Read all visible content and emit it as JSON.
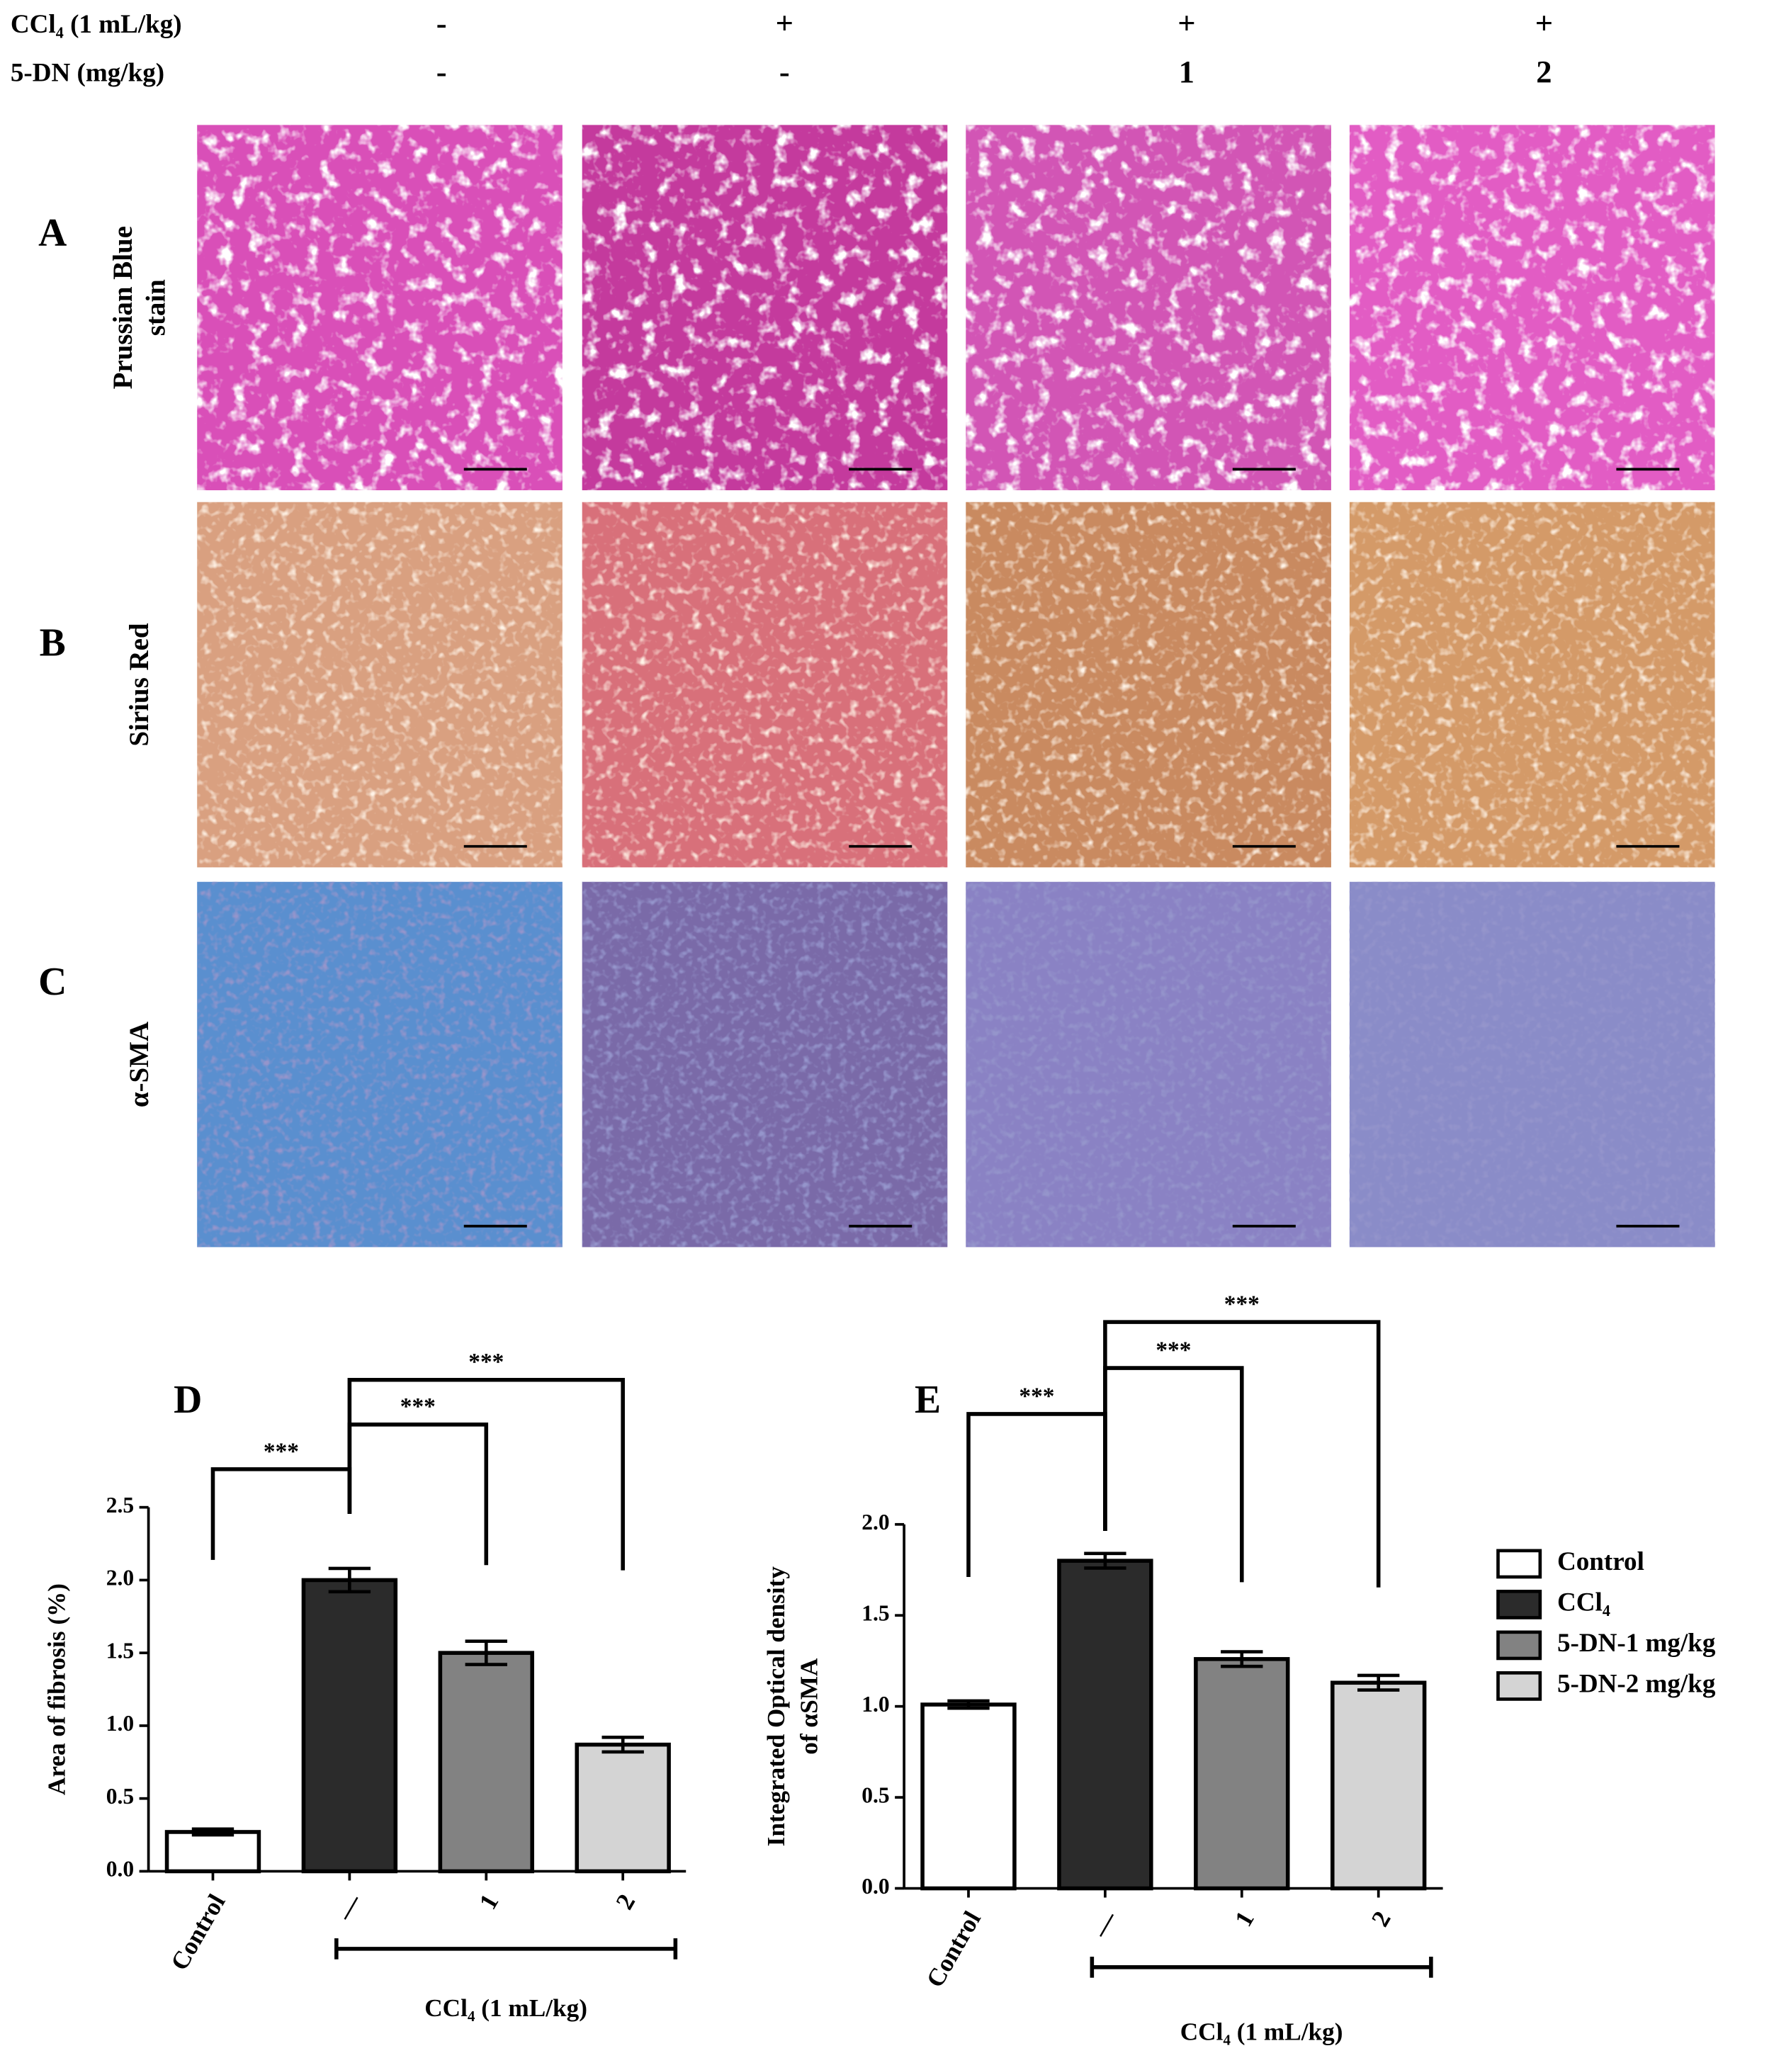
{
  "header": {
    "rows": [
      {
        "label": "CCl₄ (1 mL/kg)",
        "values": [
          "-",
          "+",
          "+",
          "+"
        ]
      },
      {
        "label": "5-DN (mg/kg)",
        "values": [
          "-",
          "-",
          "1",
          "2"
        ]
      }
    ]
  },
  "panels": [
    {
      "letter": "A",
      "label": [
        "Prussian Blue",
        "stain"
      ]
    },
    {
      "letter": "B",
      "label": [
        "Sirius Red"
      ]
    },
    {
      "letter": "C",
      "label": [
        "α-SMA"
      ]
    }
  ],
  "chart_data": [
    {
      "type": "bar",
      "panel": "D",
      "categories": [
        "Control",
        "—",
        "1",
        "2"
      ],
      "values": [
        0.27,
        2.0,
        1.5,
        0.87
      ],
      "errors": [
        0.02,
        0.08,
        0.08,
        0.05
      ],
      "colors": [
        "#ffffff",
        "#2b2b2b",
        "#828282",
        "#d4d4d4"
      ],
      "ylim": [
        0,
        2.5
      ],
      "yticks": [
        {
          "value": 0,
          "label": "0.0"
        },
        {
          "value": 0.5,
          "label": "0.5"
        },
        {
          "value": 1,
          "label": "1.0"
        },
        {
          "value": 1.5,
          "label": "1.5"
        },
        {
          "value": 2,
          "label": "2.0"
        },
        {
          "value": 2.5,
          "label": "2.5"
        }
      ],
      "ylabel": [
        "Area of fibrosis (%)"
      ],
      "group_label": "CCl₄ (1 mL/kg)",
      "significance": [
        {
          "pair": [
            1,
            0
          ],
          "label": "***"
        },
        {
          "pair": [
            1,
            2
          ],
          "label": "***"
        },
        {
          "pair": [
            1,
            3
          ],
          "label": "***"
        }
      ]
    },
    {
      "type": "bar",
      "panel": "E",
      "categories": [
        "Control",
        "—",
        "1",
        "2"
      ],
      "values": [
        1.01,
        1.8,
        1.26,
        1.13
      ],
      "errors": [
        0.02,
        0.04,
        0.04,
        0.04
      ],
      "colors": [
        "#ffffff",
        "#2b2b2b",
        "#828282",
        "#d4d4d4"
      ],
      "ylim": [
        0,
        2.0
      ],
      "yticks": [
        {
          "value": 0,
          "label": "0.0"
        },
        {
          "value": 0.5,
          "label": "0.5"
        },
        {
          "value": 1,
          "label": "1.0"
        },
        {
          "value": 1.5,
          "label": "1.5"
        },
        {
          "value": 2,
          "label": "2.0"
        }
      ],
      "ylabel": [
        "Integrated Optical density",
        "of αSMA"
      ],
      "group_label": "CCl₄ (1 mL/kg)",
      "significance": [
        {
          "pair": [
            1,
            0
          ],
          "label": "***"
        },
        {
          "pair": [
            1,
            2
          ],
          "label": "***"
        },
        {
          "pair": [
            1,
            3
          ],
          "label": "***"
        }
      ],
      "legend": [
        "Control",
        "CCl₄",
        "5-DN-1 mg/kg",
        "5-DN-2 mg/kg"
      ]
    }
  ]
}
